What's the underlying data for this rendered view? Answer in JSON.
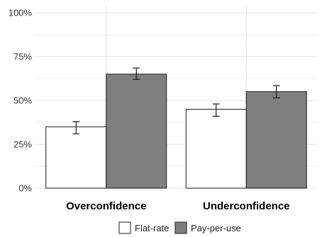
{
  "chart_data": {
    "type": "bar",
    "categories": [
      "Overconfidence",
      "Underconfidence"
    ],
    "series": [
      {
        "name": "Flat-rate",
        "values": [
          0.35,
          0.45
        ],
        "error": [
          [
            0.31,
            0.38
          ],
          [
            0.41,
            0.48
          ]
        ],
        "color": "#ffffff"
      },
      {
        "name": "Pay-per-use",
        "values": [
          0.65,
          0.55
        ],
        "error": [
          [
            0.62,
            0.685
          ],
          [
            0.515,
            0.585
          ]
        ],
        "color": "#7f7f7f"
      }
    ],
    "y_ticks": [
      0,
      0.25,
      0.5,
      0.75,
      1.0
    ],
    "y_tick_labels": [
      "0%",
      "25%",
      "50%",
      "75%",
      "100%"
    ],
    "ylim": [
      0,
      1.0
    ],
    "grid": true,
    "legend_position": "bottom",
    "title": "",
    "xlabel": "",
    "ylabel": ""
  }
}
